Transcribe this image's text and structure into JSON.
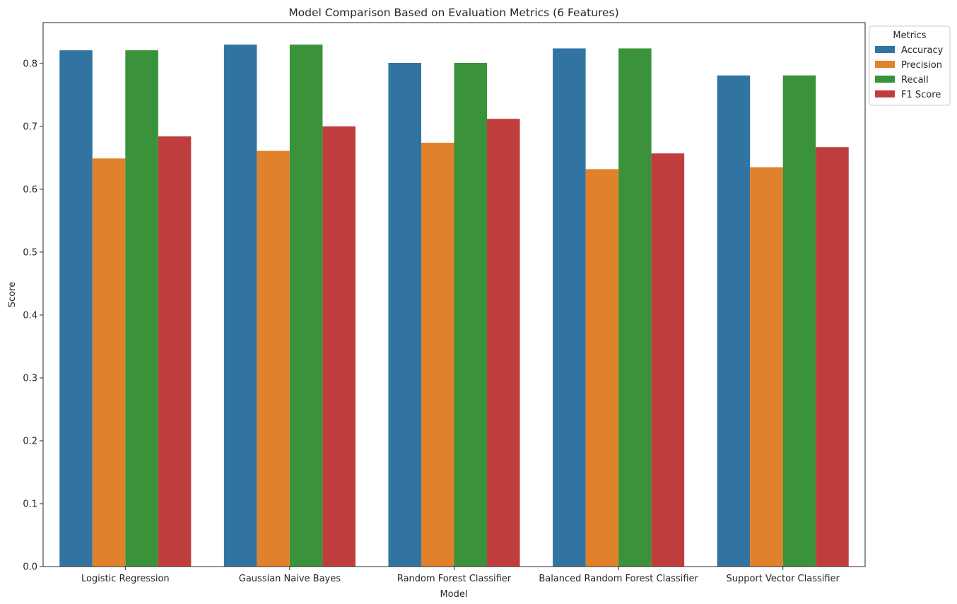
{
  "chart_data": {
    "type": "bar",
    "title": "Model Comparison Based on Evaluation Metrics (6 Features)",
    "xlabel": "Model",
    "ylabel": "Score",
    "ylim": [
      0,
      0.865
    ],
    "yticks": [
      0.0,
      0.1,
      0.2,
      0.3,
      0.4,
      0.5,
      0.6,
      0.7,
      0.8
    ],
    "ytick_labels": [
      "0.0",
      "0.1",
      "0.2",
      "0.3",
      "0.4",
      "0.5",
      "0.6",
      "0.7",
      "0.8"
    ],
    "grid": false,
    "categories": [
      "Logistic Regression",
      "Gaussian Naive Bayes",
      "Random Forest Classifier",
      "Balanced Random Forest Classifier",
      "Support Vector Classifier"
    ],
    "legend": {
      "title": "Metrics",
      "placement": "outside-top-right"
    },
    "series": [
      {
        "name": "Accuracy",
        "color": "#3274a1",
        "values": [
          0.821,
          0.83,
          0.801,
          0.824,
          0.781
        ]
      },
      {
        "name": "Precision",
        "color": "#e1812c",
        "values": [
          0.649,
          0.661,
          0.674,
          0.632,
          0.635
        ]
      },
      {
        "name": "Recall",
        "color": "#3a923a",
        "values": [
          0.821,
          0.83,
          0.801,
          0.824,
          0.781
        ]
      },
      {
        "name": "F1 Score",
        "color": "#c03d3e",
        "values": [
          0.684,
          0.7,
          0.712,
          0.657,
          0.667
        ]
      }
    ]
  }
}
